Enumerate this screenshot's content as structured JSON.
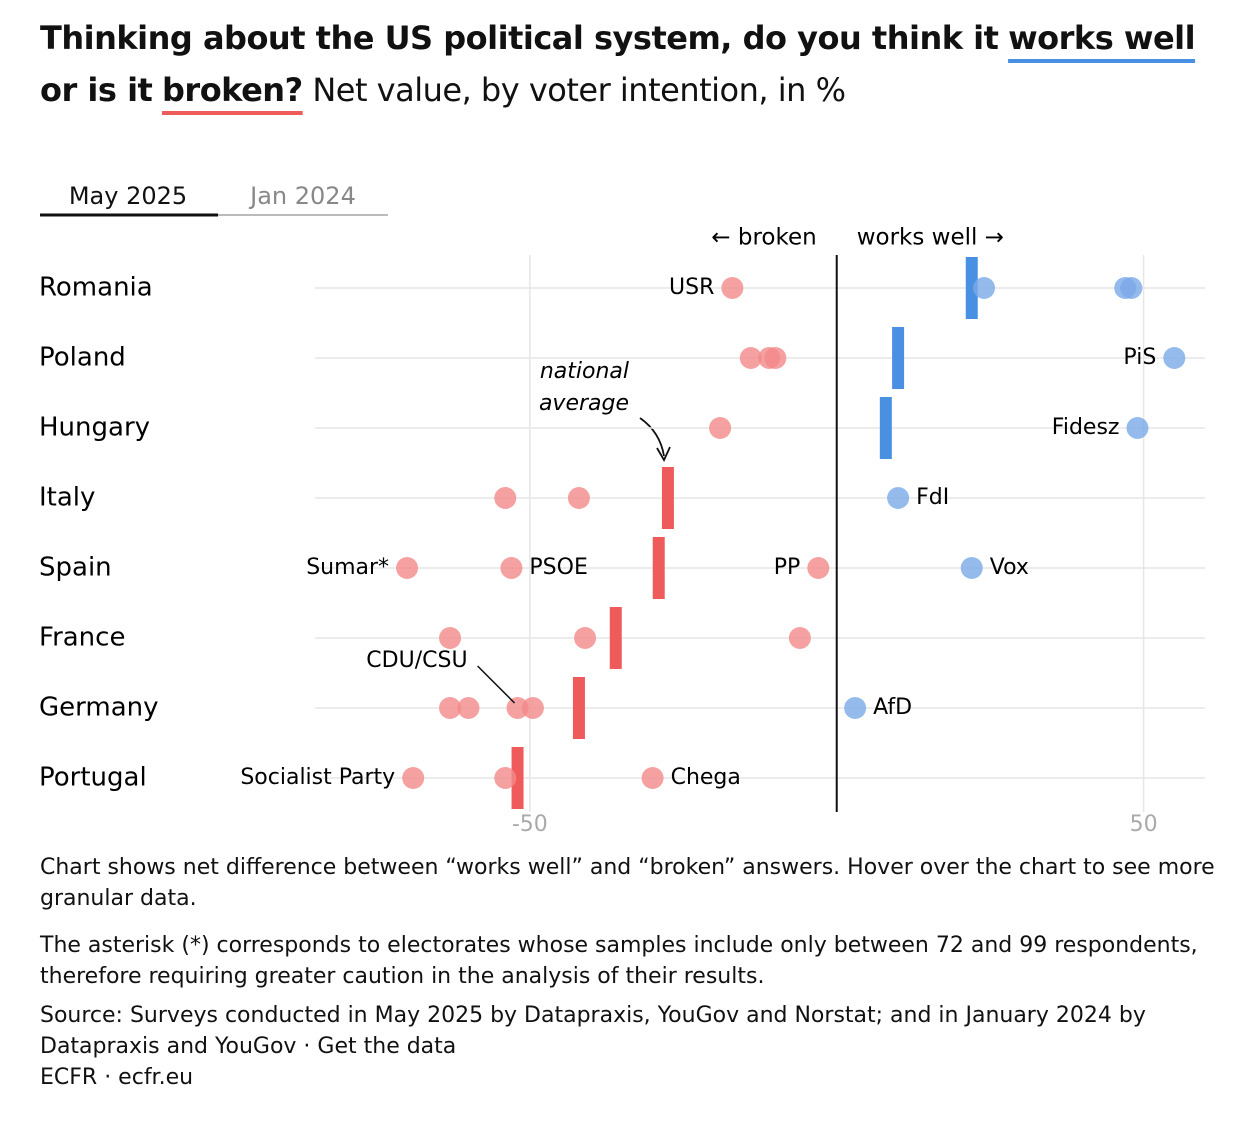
{
  "title": {
    "line1_bold": "Thinking about the US political system, do you think it",
    "works_well": "works well",
    "line2_bold": "or is it",
    "broken": "broken?",
    "rest": "Net value, by voter intention, in %"
  },
  "tabs": [
    "May 2025",
    "Jan 2024"
  ],
  "chart_data": {
    "type": "dot",
    "direction_labels": {
      "negative": "← broken",
      "positive": "works well →"
    },
    "annotation": {
      "lines": [
        "national",
        "average"
      ]
    },
    "xlim": [
      -85,
      60
    ],
    "xticks": [
      -50,
      50
    ],
    "grid": true,
    "colors": {
      "negative_dot": "#f48a8a",
      "positive_dot": "#7aaae8",
      "negative_average": "#ef5b5b",
      "positive_average": "#4a90e2"
    },
    "countries": [
      {
        "name": "Romania",
        "average": 22,
        "points": [
          {
            "value": -17,
            "label": "USR",
            "label_side": "left"
          },
          {
            "value": 24
          },
          {
            "value": 47
          },
          {
            "value": 48
          }
        ]
      },
      {
        "name": "Poland",
        "average": 10,
        "points": [
          {
            "value": -14
          },
          {
            "value": -11
          },
          {
            "value": -10
          },
          {
            "value": 55,
            "label": "PiS",
            "label_side": "left"
          }
        ]
      },
      {
        "name": "Hungary",
        "average": 8,
        "points": [
          {
            "value": -19
          },
          {
            "value": 49,
            "label": "Fidesz",
            "label_side": "left"
          }
        ]
      },
      {
        "name": "Italy",
        "average": -27.5,
        "points": [
          {
            "value": -54
          },
          {
            "value": -42
          },
          {
            "value": 10,
            "label": "FdI",
            "label_side": "right"
          }
        ]
      },
      {
        "name": "Spain",
        "average": -29,
        "points": [
          {
            "value": -70,
            "label": "Sumar*",
            "label_side": "left"
          },
          {
            "value": -53,
            "label": "PSOE",
            "label_side": "right"
          },
          {
            "value": -3,
            "label": "PP",
            "label_side": "left"
          },
          {
            "value": 22,
            "label": "Vox",
            "label_side": "right"
          }
        ]
      },
      {
        "name": "France",
        "average": -36,
        "points": [
          {
            "value": -63
          },
          {
            "value": -41
          },
          {
            "value": -6
          }
        ]
      },
      {
        "name": "Germany",
        "average": -42,
        "points": [
          {
            "value": -63
          },
          {
            "value": -60
          },
          {
            "value": -52,
            "label": "CDU/CSU",
            "label_side": "above"
          },
          {
            "value": -49.5
          },
          {
            "value": 3,
            "label": "AfD",
            "label_side": "right"
          }
        ]
      },
      {
        "name": "Portugal",
        "average": -52,
        "points": [
          {
            "value": -69,
            "label": "Socialist Party",
            "label_side": "left"
          },
          {
            "value": -54
          },
          {
            "value": -30,
            "label": "Chega",
            "label_side": "right"
          }
        ]
      }
    ]
  },
  "notes": [
    "Chart shows net difference between “works well” and “broken” answers. Hover over the chart to see more granular data.",
    "The asterisk (*) corresponds to electorates whose samples include only between 72 and 99 respondents, therefore requiring greater caution in the analysis of their results."
  ],
  "source": "Source: Surveys conducted in May 2025 by Datapraxis, YouGov and Norstat; and in January 2024 by Datapraxis and YouGov · Get the data",
  "credit": "ECFR · ecfr.eu"
}
